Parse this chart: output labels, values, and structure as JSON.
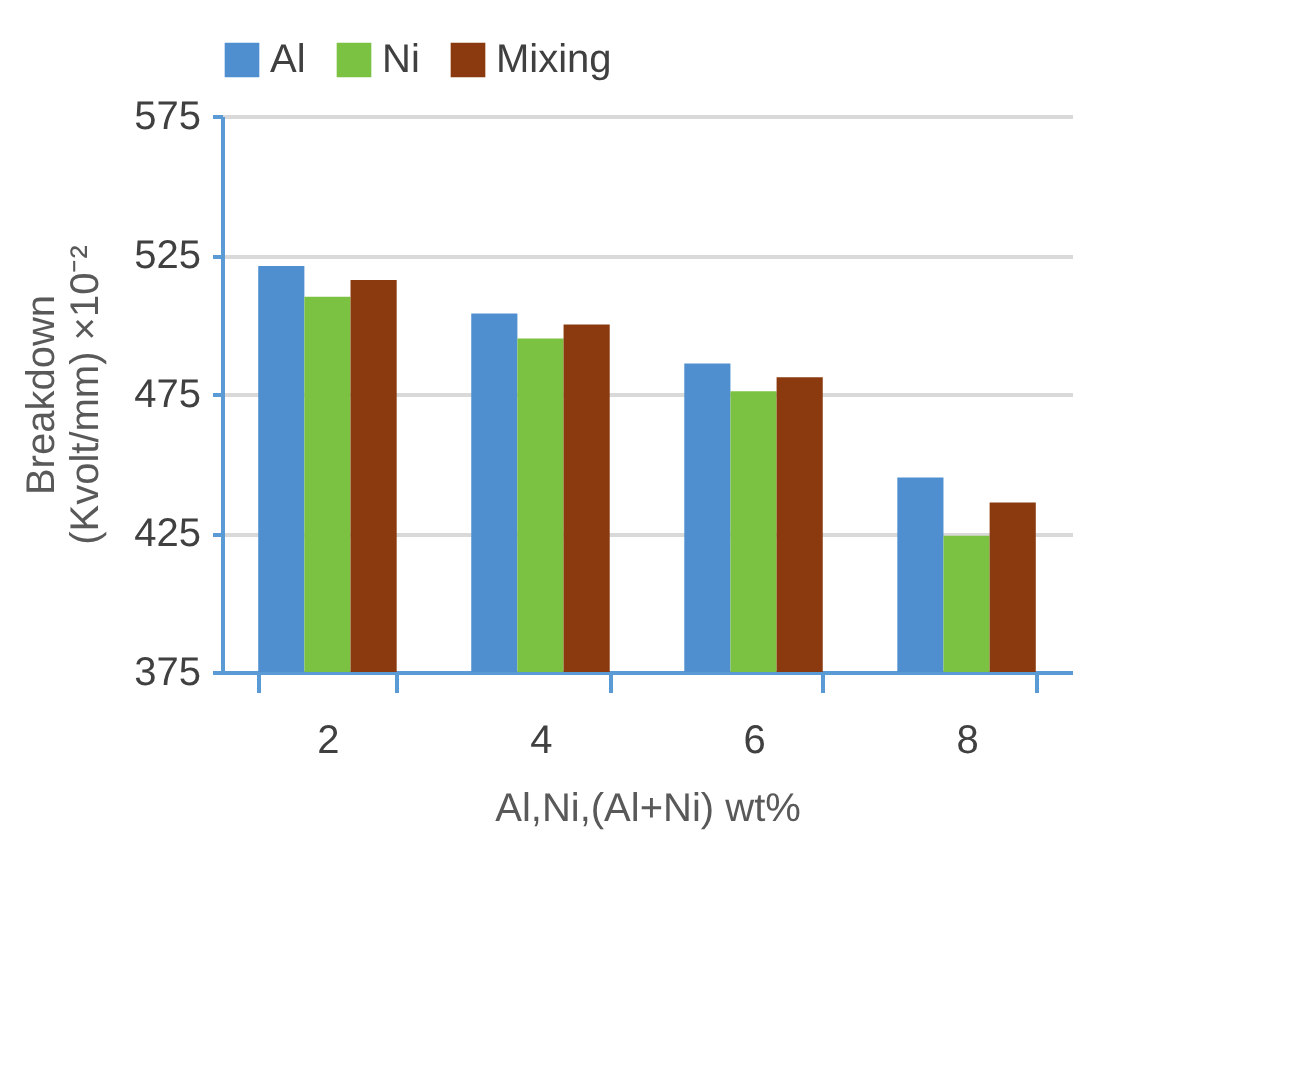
{
  "chart_data": {
    "type": "bar",
    "xlabel": "Al,Ni,(Al+Ni) wt%",
    "ylabel": "Breakdown\n(Kvolt/mm) ×10⁻²",
    "categories": [
      "2",
      "4",
      "6",
      "8"
    ],
    "series": [
      {
        "name": "Al",
        "color": "#4f8fd0",
        "values": [
          521,
          504,
          486,
          445
        ]
      },
      {
        "name": "Ni",
        "color": "#7cc242",
        "values": [
          510,
          495,
          476,
          424
        ]
      },
      {
        "name": "Mixing",
        "color": "#8b3a0f",
        "values": [
          516,
          500,
          481,
          436
        ]
      }
    ],
    "ylim": [
      375,
      575
    ],
    "yticks": [
      375,
      425,
      475,
      525,
      575
    ],
    "grid": "y",
    "legend": "top"
  }
}
